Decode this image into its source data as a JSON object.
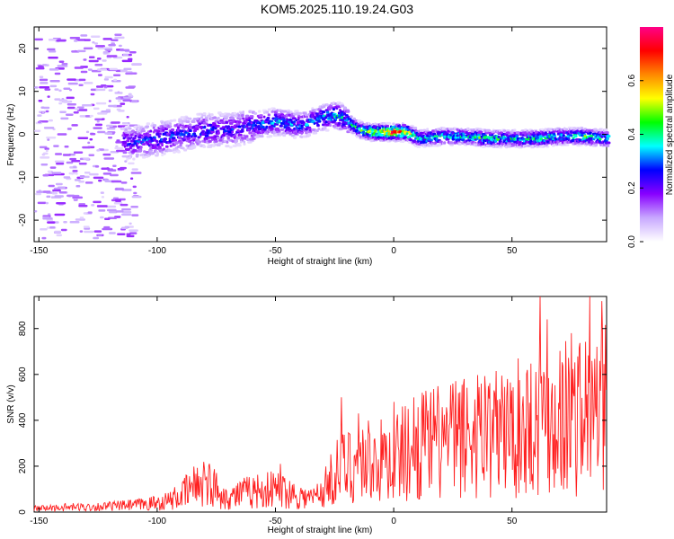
{
  "title": "KOM5.2025.110.19.24.G03",
  "chart_data": [
    {
      "type": "heatmap",
      "xlabel": "Height of straight line (km)",
      "ylabel": "Frequency (Hz)",
      "xlim": [
        -152,
        90
      ],
      "ylim": [
        -25,
        25
      ],
      "xticks": [
        -150,
        -100,
        -50,
        0,
        50
      ],
      "yticks": [
        -20,
        -10,
        0,
        10,
        20
      ],
      "grid": false,
      "colorbar": {
        "label": "Normalized spectral amplitude",
        "range": [
          0,
          0.8
        ],
        "ticks": [
          0.0,
          0.2,
          0.4,
          0.6
        ],
        "colormap": [
          "#ffffff",
          "#c8a8ff",
          "#8800ff",
          "#0000ff",
          "#00ffff",
          "#00ff00",
          "#ffff00",
          "#ff8800",
          "#ff0000",
          "#ff0088"
        ]
      },
      "ridge": {
        "x": [
          -110,
          -100,
          -90,
          -80,
          -70,
          -60,
          -50,
          -40,
          -30,
          -25,
          -20,
          -15,
          -10,
          -5,
          0,
          5,
          10,
          20,
          30,
          40,
          50,
          60,
          70,
          80,
          90
        ],
        "frequency": [
          -2,
          -1,
          0,
          1,
          1,
          2,
          3,
          2,
          4,
          4.5,
          3,
          1,
          0.5,
          0.5,
          0.5,
          0.5,
          -1,
          -0.5,
          -0.5,
          -1,
          -1,
          -1,
          -0.5,
          -0.5,
          -1
        ],
        "peak_amplitude": [
          0.3,
          0.35,
          0.3,
          0.35,
          0.3,
          0.35,
          0.4,
          0.35,
          0.4,
          0.45,
          0.4,
          0.5,
          0.6,
          0.75,
          0.8,
          0.7,
          0.45,
          0.5,
          0.45,
          0.5,
          0.45,
          0.5,
          0.45,
          0.5,
          0.45
        ]
      }
    },
    {
      "type": "line",
      "xlabel": "Height of straight line (km)",
      "ylabel": "SNR (v/v)",
      "xlim": [
        -152,
        90
      ],
      "ylim": [
        0,
        940
      ],
      "xticks": [
        -150,
        -100,
        -50,
        0,
        50
      ],
      "yticks": [
        0,
        200,
        400,
        600,
        800
      ],
      "grid": false,
      "color": "#ff2020",
      "series": [
        {
          "x": [
            -152,
            -140,
            -130,
            -120,
            -110,
            -100,
            -95,
            -90,
            -85,
            -80,
            -75,
            -70,
            -65,
            -60,
            -55,
            -50,
            -45,
            -40,
            -35,
            -30,
            -25,
            -20,
            -15,
            -10,
            -5,
            0,
            5,
            10,
            15,
            20,
            25,
            30,
            35,
            40,
            45,
            50,
            55,
            60,
            65,
            70,
            75,
            80,
            85,
            90
          ],
          "y": [
            15,
            20,
            22,
            25,
            30,
            40,
            50,
            70,
            110,
            140,
            100,
            60,
            80,
            90,
            95,
            100,
            90,
            70,
            60,
            90,
            170,
            200,
            220,
            230,
            220,
            240,
            260,
            300,
            290,
            310,
            320,
            330,
            350,
            360,
            340,
            350,
            380,
            400,
            420,
            430,
            410,
            430,
            450,
            440
          ]
        }
      ],
      "peaks": {
        "x": [
          -80,
          -48,
          -22,
          -15,
          0,
          12,
          25,
          37,
          40,
          48,
          62,
          65,
          75,
          83,
          88
        ],
        "y": [
          190,
          210,
          500,
          430,
          480,
          520,
          560,
          560,
          550,
          580,
          940,
          840,
          780,
          940,
          920
        ]
      }
    }
  ]
}
